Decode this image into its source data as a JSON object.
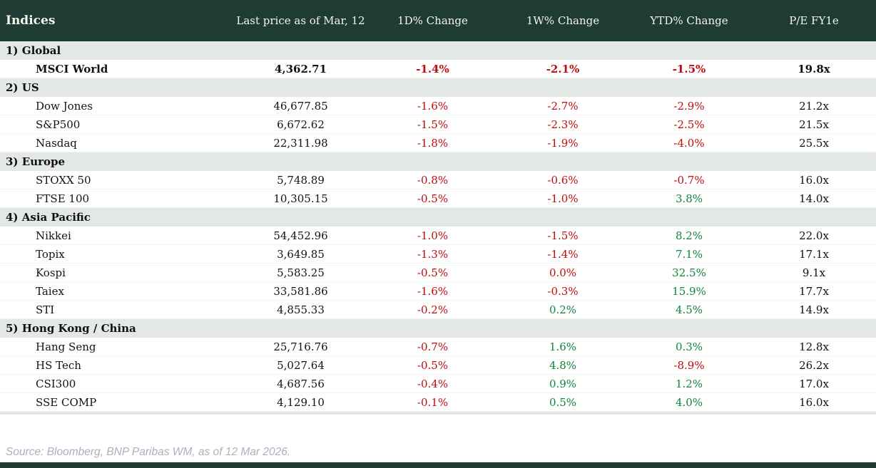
{
  "header": {
    "title": "Indices",
    "columns": [
      "Last price as of Mar, 12",
      "1D% Change",
      "1W% Change",
      "YTD% Change",
      "P/E FY1e"
    ]
  },
  "chart_data": {
    "type": "table",
    "title": "Indices",
    "columns": [
      "Indices",
      "Last price as of Mar, 12",
      "1D% Change",
      "1W% Change",
      "YTD% Change",
      "P/E FY1e"
    ],
    "sections": [
      {
        "label": "1) Global",
        "rows": [
          {
            "name": "MSCI World",
            "bold": true,
            "price": "4,362.71",
            "changes": [
              {
                "v": "-1.4%",
                "s": "dn"
              },
              {
                "v": "-2.1%",
                "s": "dn"
              },
              {
                "v": "-1.5%",
                "s": "dn"
              }
            ],
            "pe": "19.8x"
          }
        ]
      },
      {
        "label": "2) US",
        "rows": [
          {
            "name": "Dow Jones",
            "price": "46,677.85",
            "changes": [
              {
                "v": "-1.6%",
                "s": "dn"
              },
              {
                "v": "-2.7%",
                "s": "dn"
              },
              {
                "v": "-2.9%",
                "s": "dn"
              }
            ],
            "pe": "21.2x"
          },
          {
            "name": "S&P500",
            "price": "6,672.62",
            "changes": [
              {
                "v": "-1.5%",
                "s": "dn"
              },
              {
                "v": "-2.3%",
                "s": "dn"
              },
              {
                "v": "-2.5%",
                "s": "dn"
              }
            ],
            "pe": "21.5x"
          },
          {
            "name": "Nasdaq",
            "price": "22,311.98",
            "changes": [
              {
                "v": "-1.8%",
                "s": "dn"
              },
              {
                "v": "-1.9%",
                "s": "dn"
              },
              {
                "v": "-4.0%",
                "s": "dn"
              }
            ],
            "pe": "25.5x"
          }
        ]
      },
      {
        "label": "3) Europe",
        "rows": [
          {
            "name": "STOXX 50",
            "price": "5,748.89",
            "changes": [
              {
                "v": "-0.8%",
                "s": "dn"
              },
              {
                "v": "-0.6%",
                "s": "dn"
              },
              {
                "v": "-0.7%",
                "s": "dn"
              }
            ],
            "pe": "16.0x"
          },
          {
            "name": "FTSE 100",
            "price": "10,305.15",
            "changes": [
              {
                "v": "-0.5%",
                "s": "dn"
              },
              {
                "v": "-1.0%",
                "s": "dn"
              },
              {
                "v": "3.8%",
                "s": "up"
              }
            ],
            "pe": "14.0x"
          }
        ]
      },
      {
        "label": "4) Asia Pacific",
        "rows": [
          {
            "name": "Nikkei",
            "price": "54,452.96",
            "changes": [
              {
                "v": "-1.0%",
                "s": "dn"
              },
              {
                "v": "-1.5%",
                "s": "dn"
              },
              {
                "v": "8.2%",
                "s": "up"
              }
            ],
            "pe": "22.0x"
          },
          {
            "name": "Topix",
            "price": "3,649.85",
            "changes": [
              {
                "v": "-1.3%",
                "s": "dn"
              },
              {
                "v": "-1.4%",
                "s": "dn"
              },
              {
                "v": "7.1%",
                "s": "up"
              }
            ],
            "pe": "17.1x"
          },
          {
            "name": "Kospi",
            "price": "5,583.25",
            "changes": [
              {
                "v": "-0.5%",
                "s": "dn"
              },
              {
                "v": "0.0%",
                "s": "dn"
              },
              {
                "v": "32.5%",
                "s": "up"
              }
            ],
            "pe": "9.1x"
          },
          {
            "name": "Taiex",
            "price": "33,581.86",
            "changes": [
              {
                "v": "-1.6%",
                "s": "dn"
              },
              {
                "v": "-0.3%",
                "s": "dn"
              },
              {
                "v": "15.9%",
                "s": "up"
              }
            ],
            "pe": "17.7x"
          },
          {
            "name": "STI",
            "price": "4,855.33",
            "changes": [
              {
                "v": "-0.2%",
                "s": "dn"
              },
              {
                "v": "0.2%",
                "s": "up"
              },
              {
                "v": "4.5%",
                "s": "up"
              }
            ],
            "pe": "14.9x"
          }
        ]
      },
      {
        "label": "5) Hong Kong / China",
        "rows": [
          {
            "name": "Hang Seng",
            "price": "25,716.76",
            "changes": [
              {
                "v": "-0.7%",
                "s": "dn"
              },
              {
                "v": "1.6%",
                "s": "up"
              },
              {
                "v": "0.3%",
                "s": "up"
              }
            ],
            "pe": "12.8x"
          },
          {
            "name": "HS Tech",
            "price": "5,027.64",
            "changes": [
              {
                "v": "-0.5%",
                "s": "dn"
              },
              {
                "v": "4.8%",
                "s": "up"
              },
              {
                "v": "-8.9%",
                "s": "dn"
              }
            ],
            "pe": "26.2x"
          },
          {
            "name": "CSI300",
            "price": "4,687.56",
            "changes": [
              {
                "v": "-0.4%",
                "s": "dn"
              },
              {
                "v": "0.9%",
                "s": "up"
              },
              {
                "v": "1.2%",
                "s": "up"
              }
            ],
            "pe": "17.0x"
          },
          {
            "name": "SSE COMP",
            "price": "4,129.10",
            "changes": [
              {
                "v": "-0.1%",
                "s": "dn"
              },
              {
                "v": "0.5%",
                "s": "up"
              },
              {
                "v": "4.0%",
                "s": "up"
              }
            ],
            "pe": "16.0x"
          }
        ]
      }
    ]
  },
  "footer": {
    "source": "Source: Bloomberg, BNP Paribas WM, as of 12 Mar 2026."
  },
  "colors": {
    "header_bg": "#1e3b34",
    "section_bg": "#e4e8e4",
    "negative": "#c00c0c",
    "positive": "#0e853c",
    "pe_text": "#101010",
    "source_text": "#a9b1bc"
  }
}
